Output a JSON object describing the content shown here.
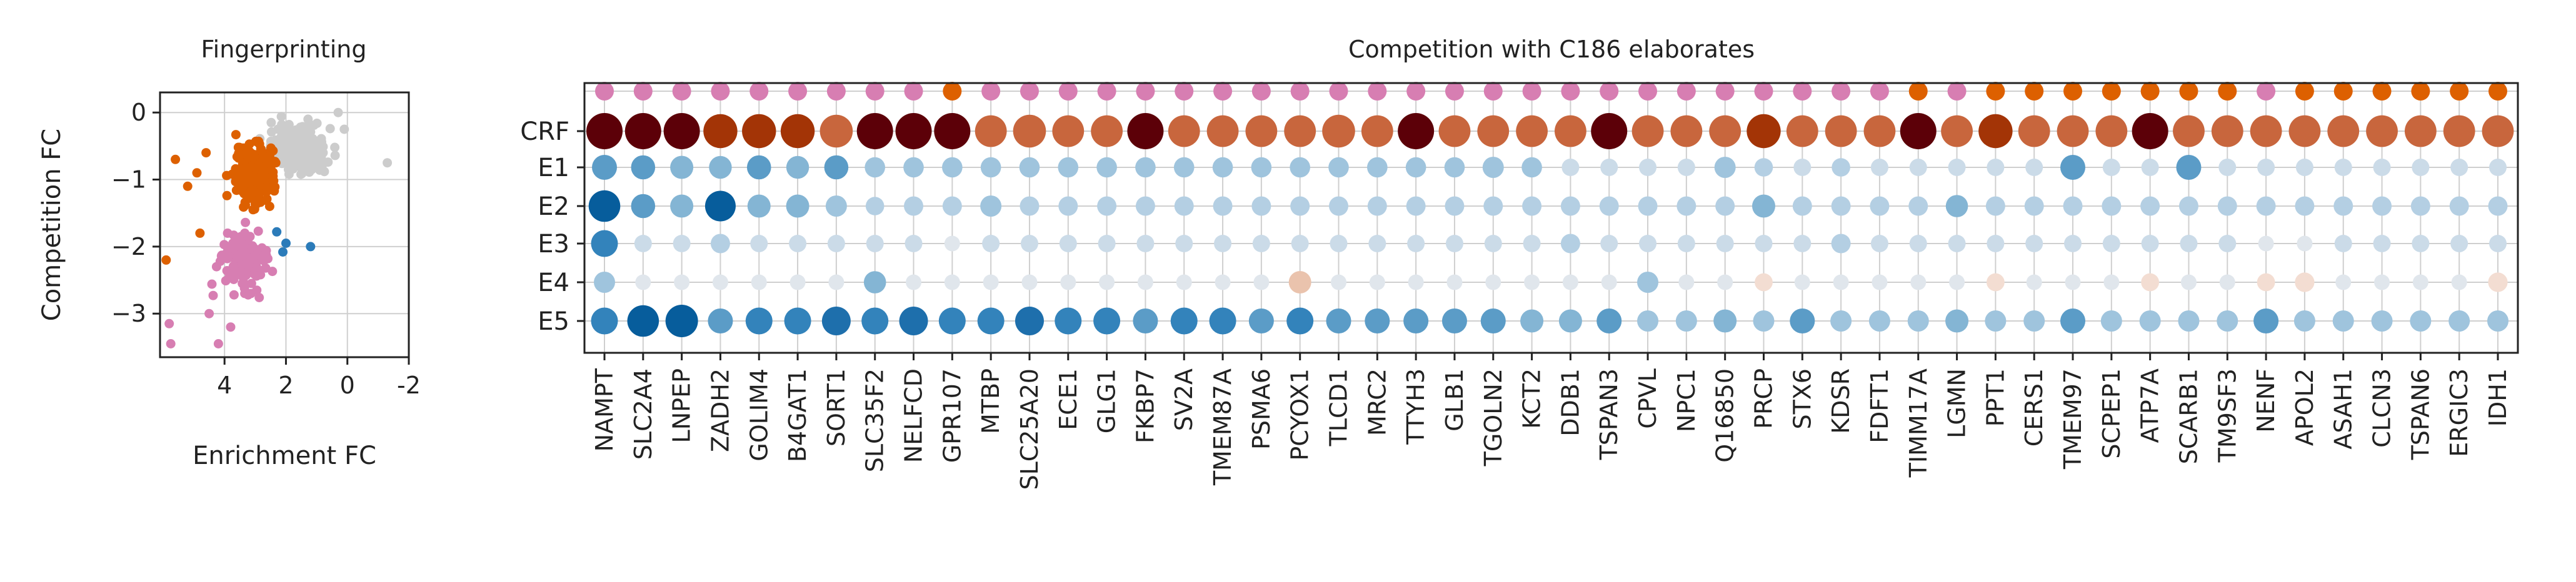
{
  "colors": {
    "gray": "#cccccc",
    "orange": "#dd6000",
    "pink": "#d77eb2",
    "blue": "#2b7bb9",
    "axis": "#222222",
    "grid": "#cfcfcf"
  },
  "chart_data": [
    {
      "type": "scatter",
      "title": "Fingerprinting",
      "xlabel": "Enrichment FC",
      "ylabel": "Competition FC",
      "xlim": [
        6.1,
        -2.0
      ],
      "ylim": [
        -3.65,
        0.3
      ],
      "x_inverted": true,
      "xticks": [
        4,
        2,
        0,
        -2
      ],
      "xtick_labels": [
        "4",
        "2",
        "0",
        "-2"
      ],
      "yticks": [
        0,
        -1,
        -2,
        -3
      ],
      "ytick_labels": [
        "0",
        "−1",
        "−2",
        "−3"
      ],
      "grid": true,
      "series": [
        {
          "color": "gray",
          "points": []
        },
        {
          "color": "orange",
          "points": []
        },
        {
          "color": "pink",
          "points": []
        },
        {
          "color": "blue",
          "points": []
        }
      ]
    },
    {
      "type": "dot-matrix",
      "title": "Competition with C186 elaborates",
      "rows": [
        "CRF",
        "E1",
        "E2",
        "E3",
        "E4",
        "E5"
      ],
      "categories": [
        "NAMPT",
        "SLC2A4",
        "LNPEP",
        "ZADH2",
        "GOLIM4",
        "B4GAT1",
        "SORT1",
        "SLC35F2",
        "NELFCD",
        "GPR107",
        "MTBP",
        "SLC25A20",
        "ECE1",
        "GLG1",
        "FKBP7",
        "SV2A",
        "TMEM87A",
        "PSMA6",
        "PCYOX1",
        "TLCD1",
        "MRC2",
        "TTYH3",
        "GLB1",
        "TGOLN2",
        "KCT2",
        "DDB1",
        "TSPAN3",
        "CPVL",
        "NPC1",
        "Q16850",
        "PRCP",
        "STX6",
        "KDSR",
        "FDFT1",
        "TIMM17A",
        "LGMN",
        "PPT1",
        "CERS1",
        "TMEM97",
        "SCPEP1",
        "ATP7A",
        "SCARB1",
        "TM9SF3",
        "NENF",
        "APOL2",
        "ASAH1",
        "CLCN3",
        "TSPAN6",
        "ERGIC3",
        "IDH1"
      ],
      "category_group": [
        "pink",
        "pink",
        "pink",
        "pink",
        "pink",
        "pink",
        "pink",
        "pink",
        "pink",
        "orange",
        "pink",
        "pink",
        "pink",
        "pink",
        "pink",
        "pink",
        "pink",
        "pink",
        "pink",
        "pink",
        "pink",
        "pink",
        "pink",
        "pink",
        "pink",
        "pink",
        "pink",
        "pink",
        "pink",
        "pink",
        "pink",
        "pink",
        "pink",
        "pink",
        "orange",
        "pink",
        "orange",
        "orange",
        "orange",
        "orange",
        "orange",
        "orange",
        "orange",
        "pink",
        "orange",
        "orange",
        "orange",
        "orange",
        "orange",
        "orange"
      ],
      "crf_values": [
        1.0,
        1.0,
        1.0,
        0.8,
        0.8,
        0.8,
        0.7,
        1.0,
        1.0,
        1.0,
        0.6,
        0.7,
        0.6,
        0.6,
        1.0,
        0.6,
        0.6,
        0.6,
        0.6,
        0.7,
        0.6,
        1.0,
        0.6,
        0.6,
        0.6,
        0.6,
        1.0,
        0.6,
        0.6,
        0.6,
        0.8,
        0.6,
        0.6,
        0.6,
        1.0,
        0.6,
        0.8,
        0.6,
        0.6,
        0.6,
        1.0,
        0.6,
        0.6,
        0.6,
        0.6,
        0.6,
        0.6,
        0.6,
        0.6,
        0.6
      ],
      "e_values": [
        [
          0.6,
          0.55,
          0.5,
          0.48,
          0.55,
          0.48,
          0.55,
          0.35,
          0.35,
          0.35,
          0.35,
          0.35,
          0.35,
          0.35,
          0.35,
          0.35,
          0.35,
          0.35,
          0.35,
          0.35,
          0.35,
          0.35,
          0.35,
          0.4,
          0.35,
          0.2,
          0.2,
          0.2,
          0.2,
          0.4,
          0.25,
          0.2,
          0.25,
          0.2,
          0.2,
          0.2,
          0.2,
          0.2,
          0.6,
          0.2,
          0.2,
          0.6,
          0.2,
          0.2,
          0.2,
          0.2,
          0.2,
          0.2,
          0.2,
          0.2
        ],
        [
          0.95,
          0.55,
          0.5,
          0.9,
          0.5,
          0.5,
          0.4,
          0.25,
          0.3,
          0.3,
          0.4,
          0.3,
          0.3,
          0.3,
          0.3,
          0.3,
          0.3,
          0.3,
          0.3,
          0.3,
          0.3,
          0.3,
          0.3,
          0.3,
          0.3,
          0.3,
          0.3,
          0.3,
          0.3,
          0.3,
          0.5,
          0.3,
          0.3,
          0.3,
          0.3,
          0.45,
          0.3,
          0.3,
          0.3,
          0.3,
          0.3,
          0.3,
          0.3,
          0.3,
          0.3,
          0.3,
          0.3,
          0.3,
          0.3,
          0.3
        ],
        [
          0.7,
          0.2,
          0.2,
          0.3,
          0.2,
          0.2,
          0.2,
          0.2,
          0.2,
          0.1,
          0.2,
          0.2,
          0.2,
          0.2,
          0.2,
          0.2,
          0.2,
          0.2,
          0.2,
          0.2,
          0.2,
          0.2,
          0.2,
          0.2,
          0.2,
          0.3,
          0.2,
          0.2,
          0.2,
          0.2,
          0.2,
          0.2,
          0.3,
          0.2,
          0.2,
          0.2,
          0.2,
          0.2,
          0.2,
          0.2,
          0.2,
          0.2,
          0.2,
          0.1,
          0.1,
          0.2,
          0.2,
          0.2,
          0.2,
          0.2
        ],
        [
          0.4,
          0.1,
          0.1,
          0.1,
          0.1,
          0.1,
          0.1,
          0.45,
          0.1,
          0.1,
          0.1,
          0.1,
          0.1,
          0.1,
          0.1,
          0.1,
          0.1,
          0.1,
          -0.25,
          0.1,
          0.1,
          0.1,
          0.1,
          0.1,
          0.1,
          0.1,
          0.1,
          0.4,
          0.1,
          0.1,
          -0.1,
          0.1,
          0.1,
          0.1,
          0.1,
          0.1,
          -0.1,
          0.1,
          0.1,
          0.1,
          -0.1,
          0.1,
          0.1,
          -0.1,
          -0.15,
          0.1,
          0.1,
          0.1,
          0.1,
          -0.15
        ],
        [
          0.7,
          0.95,
          1.0,
          0.6,
          0.7,
          0.7,
          0.8,
          0.7,
          0.8,
          0.7,
          0.7,
          0.8,
          0.7,
          0.7,
          0.6,
          0.7,
          0.7,
          0.6,
          0.7,
          0.6,
          0.6,
          0.6,
          0.6,
          0.6,
          0.5,
          0.5,
          0.6,
          0.4,
          0.4,
          0.5,
          0.4,
          0.6,
          0.4,
          0.4,
          0.4,
          0.5,
          0.4,
          0.4,
          0.6,
          0.4,
          0.4,
          0.4,
          0.4,
          0.6,
          0.4,
          0.4,
          0.4,
          0.4,
          0.4,
          0.4
        ]
      ]
    }
  ]
}
